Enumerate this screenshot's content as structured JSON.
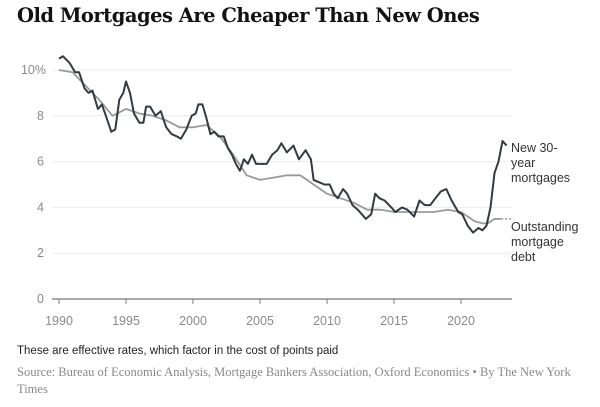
{
  "title": "Old Mortgages Are Cheaper Than New Ones",
  "note": "These are effective rates, which factor in the cost of points paid",
  "source": "Source: Bureau of Economic Analysis, Mortgage Bankers Association, Oxford Economics • By The New York Times",
  "chart_data": {
    "type": "line",
    "title": "Old Mortgages Are Cheaper Than New Ones",
    "xlabel": "",
    "ylabel": "",
    "xlim": [
      1990,
      2024
    ],
    "ylim": [
      0,
      10.8
    ],
    "grid": true,
    "yticks": [
      {
        "v": 0,
        "label": "0"
      },
      {
        "v": 2,
        "label": "2"
      },
      {
        "v": 4,
        "label": "4"
      },
      {
        "v": 6,
        "label": "6"
      },
      {
        "v": 8,
        "label": "8"
      },
      {
        "v": 10,
        "label": "10%"
      }
    ],
    "xticks": [
      {
        "v": 1990,
        "label": "1990"
      },
      {
        "v": 1995,
        "label": "1995"
      },
      {
        "v": 2000,
        "label": "2000"
      },
      {
        "v": 2005,
        "label": "2005"
      },
      {
        "v": 2010,
        "label": "2010"
      },
      {
        "v": 2015,
        "label": "2015"
      },
      {
        "v": 2020,
        "label": "2020"
      }
    ],
    "series": [
      {
        "name": "Outstanding mortgage debt",
        "label_lines": [
          "Outstanding",
          "mortgage",
          "debt"
        ],
        "color": "#999999",
        "x": [
          1990,
          1991,
          1992,
          1993,
          1994,
          1995,
          1996,
          1997,
          1998,
          1999,
          2000,
          2001,
          2002,
          2003,
          2004,
          2005,
          2006,
          2007,
          2008,
          2009,
          2010,
          2011,
          2012,
          2013,
          2014,
          2015,
          2016,
          2017,
          2018,
          2019,
          2020,
          2021,
          2021.6,
          2022,
          2022.5,
          2023
        ],
        "y": [
          10.0,
          9.9,
          9.3,
          8.7,
          8.0,
          8.3,
          8.1,
          8.0,
          7.8,
          7.5,
          7.5,
          7.6,
          7.1,
          6.3,
          5.4,
          5.2,
          5.3,
          5.4,
          5.4,
          5.0,
          4.6,
          4.4,
          4.2,
          3.9,
          3.9,
          3.8,
          3.8,
          3.8,
          3.8,
          3.9,
          3.8,
          3.4,
          3.3,
          3.3,
          3.5,
          3.5
        ],
        "projected_to": 2023.8
      },
      {
        "name": "New 30-year mortgages",
        "label_lines": [
          "New 30-",
          "year",
          "mortgages"
        ],
        "color": "#333a40",
        "x": [
          1990,
          1990.3,
          1990.8,
          1991.2,
          1991.5,
          1991.9,
          1992.2,
          1992.5,
          1992.9,
          1993.2,
          1993.5,
          1993.9,
          1994.2,
          1994.5,
          1994.8,
          1995.0,
          1995.3,
          1995.6,
          1996.0,
          1996.3,
          1996.5,
          1996.8,
          1997.2,
          1997.6,
          1998.0,
          1998.4,
          1998.8,
          1999.1,
          1999.5,
          1999.9,
          2000.2,
          2000.4,
          2000.7,
          2001.0,
          2001.3,
          2001.6,
          2001.9,
          2002.3,
          2002.6,
          2002.9,
          2003.2,
          2003.5,
          2003.8,
          2004.1,
          2004.4,
          2004.7,
          2005.0,
          2005.5,
          2005.9,
          2006.3,
          2006.6,
          2007.0,
          2007.5,
          2007.9,
          2008.4,
          2008.8,
          2009.0,
          2009.4,
          2009.8,
          2010.2,
          2010.5,
          2010.8,
          2011.2,
          2011.5,
          2011.9,
          2012.3,
          2012.9,
          2013.3,
          2013.6,
          2013.9,
          2014.3,
          2014.8,
          2015.1,
          2015.6,
          2016.0,
          2016.5,
          2016.9,
          2017.3,
          2017.7,
          2018.1,
          2018.5,
          2018.9,
          2019.3,
          2019.8,
          2020.1,
          2020.5,
          2020.9,
          2021.3,
          2021.6,
          2021.9,
          2022.2,
          2022.5,
          2022.8,
          2023.1,
          2023.4
        ],
        "y": [
          10.5,
          10.6,
          10.3,
          9.9,
          9.9,
          9.2,
          9.0,
          9.1,
          8.3,
          8.5,
          8.0,
          7.3,
          7.4,
          8.7,
          9.0,
          9.5,
          9.0,
          8.1,
          7.7,
          7.7,
          8.4,
          8.4,
          8.0,
          8.2,
          7.5,
          7.2,
          7.1,
          7.0,
          7.4,
          8.0,
          8.1,
          8.5,
          8.5,
          7.9,
          7.2,
          7.3,
          7.1,
          7.1,
          6.6,
          6.3,
          5.9,
          5.6,
          6.1,
          5.9,
          6.3,
          5.9,
          5.9,
          5.9,
          6.3,
          6.5,
          6.8,
          6.4,
          6.7,
          6.1,
          6.5,
          6.1,
          5.2,
          5.1,
          5.0,
          5.0,
          4.6,
          4.4,
          4.8,
          4.6,
          4.1,
          3.9,
          3.5,
          3.7,
          4.6,
          4.4,
          4.3,
          4.0,
          3.8,
          4.0,
          3.9,
          3.6,
          4.3,
          4.1,
          4.1,
          4.4,
          4.7,
          4.8,
          4.3,
          3.8,
          3.7,
          3.2,
          2.9,
          3.1,
          3.0,
          3.2,
          4.0,
          5.5,
          6.0,
          6.9,
          6.7
        ]
      }
    ]
  }
}
